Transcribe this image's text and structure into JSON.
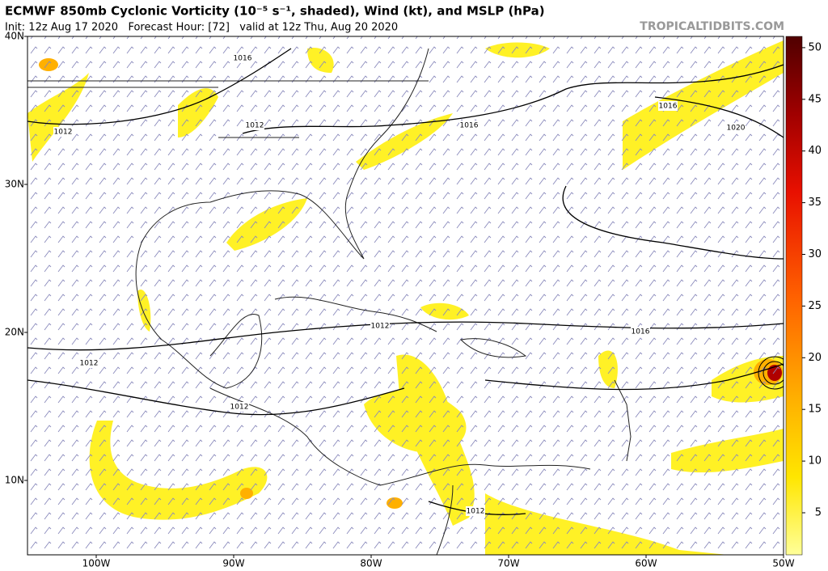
{
  "header": {
    "title": "ECMWF 850mb Cyclonic Vorticity (10⁻⁵ s⁻¹, shaded), Wind (kt), and MSLP (hPa)",
    "subtitle": "Init: 12z Aug 17 2020   Forecast Hour: [72]   valid at 12z Thu, Aug 20 2020",
    "source": "TROPICALTIDBITS.COM"
  },
  "map": {
    "lat_labels": [
      "40N",
      "30N",
      "20N",
      "10N"
    ],
    "lon_labels": [
      "100W",
      "90W",
      "80W",
      "70W",
      "60W",
      "50W"
    ],
    "isobar_labels": [
      "1016",
      "1012",
      "1012",
      "1016",
      "1016",
      "1020",
      "1012",
      "1016",
      "1012",
      "1012",
      "1012"
    ]
  },
  "colorbar": {
    "ticks": [
      5,
      10,
      15,
      20,
      25,
      30,
      35,
      40,
      45,
      50
    ]
  }
}
